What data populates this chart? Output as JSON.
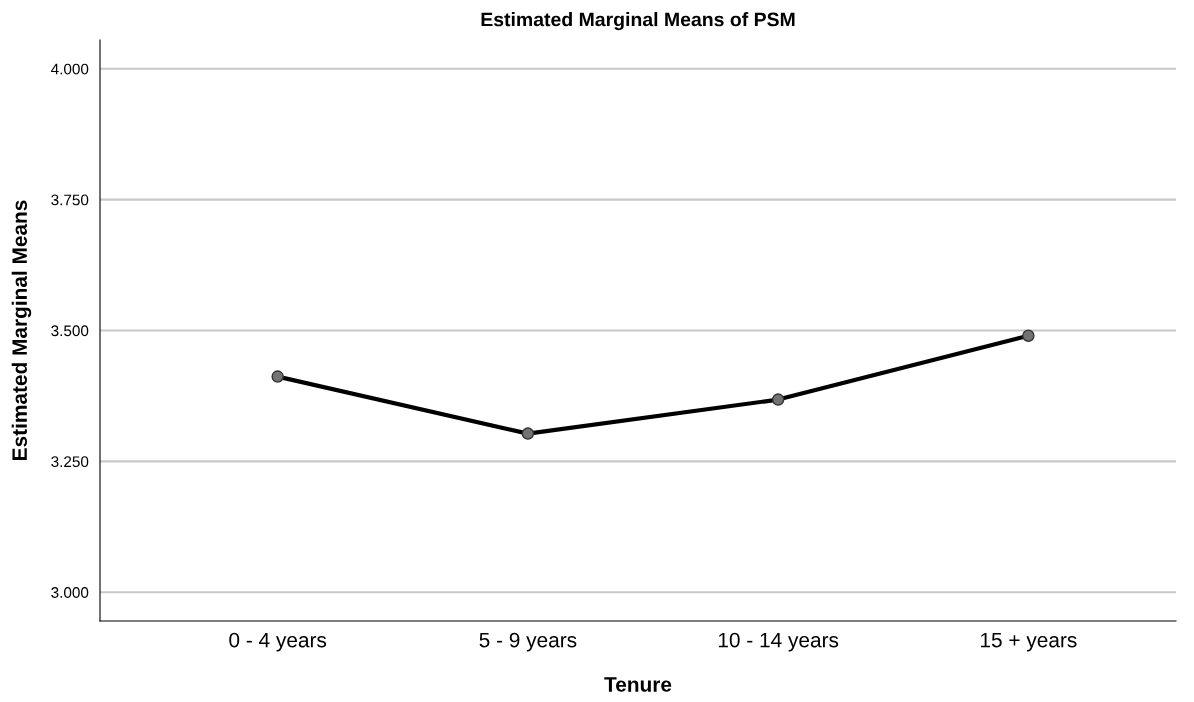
{
  "chart_data": {
    "type": "line",
    "title": "Estimated Marginal Means of PSM",
    "xlabel": "Tenure",
    "ylabel": "Estimated Marginal Means",
    "categories": [
      "0 - 4 years",
      "5 - 9 years",
      "10 - 14 years",
      "15 + years"
    ],
    "series": [
      {
        "color": "#000000",
        "values": [
          3.412,
          3.303,
          3.368,
          3.49
        ]
      }
    ],
    "ylim": [
      2.945,
      4.055
    ],
    "yticks": [
      {
        "value": 3.0,
        "label": "3.000"
      },
      {
        "value": 3.25,
        "label": "3.250"
      },
      {
        "value": 3.5,
        "label": "3.500"
      },
      {
        "value": 3.75,
        "label": "3.750"
      },
      {
        "value": 4.0,
        "label": "4.000"
      }
    ],
    "grid": "y",
    "marker": "circle",
    "line_style": "solid"
  }
}
